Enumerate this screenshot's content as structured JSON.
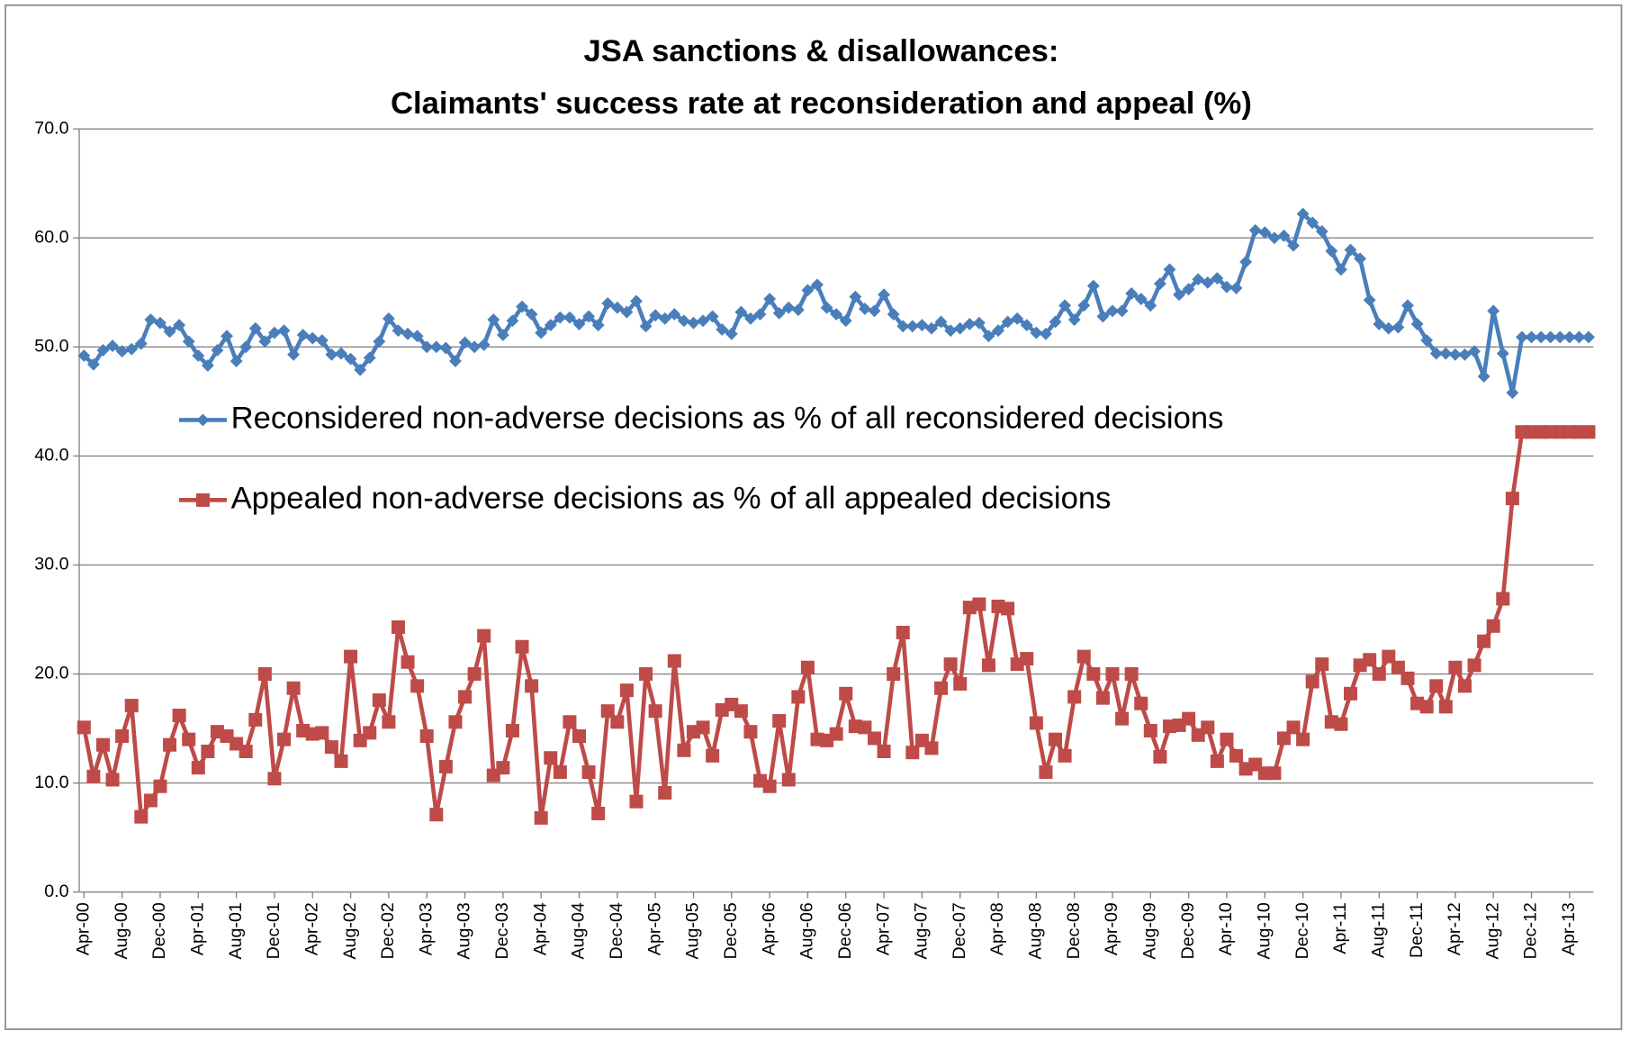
{
  "chart_data": {
    "type": "line",
    "title_lines": [
      "JSA sanctions & disallowances:",
      "Claimants' success rate at reconsideration and appeal (%)"
    ],
    "categories": [
      "Apr-00",
      null,
      null,
      null,
      "Aug-00",
      null,
      null,
      null,
      "Dec-00",
      null,
      null,
      null,
      "Apr-01",
      null,
      null,
      null,
      "Aug-01",
      null,
      null,
      null,
      "Dec-01",
      null,
      null,
      null,
      "Apr-02",
      null,
      null,
      null,
      "Aug-02",
      null,
      null,
      null,
      "Dec-02",
      null,
      null,
      null,
      "Apr-03",
      null,
      null,
      null,
      "Aug-03",
      null,
      null,
      null,
      "Dec-03",
      null,
      null,
      null,
      "Apr-04",
      null,
      null,
      null,
      "Aug-04",
      null,
      null,
      null,
      "Dec-04",
      null,
      null,
      null,
      "Apr-05",
      null,
      null,
      null,
      "Aug-05",
      null,
      null,
      null,
      "Dec-05",
      null,
      null,
      null,
      "Apr-06",
      null,
      null,
      null,
      "Aug-06",
      null,
      null,
      null,
      "Dec-06",
      null,
      null,
      null,
      "Apr-07",
      null,
      null,
      null,
      "Aug-07",
      null,
      null,
      null,
      "Dec-07",
      null,
      null,
      null,
      "Apr-08",
      null,
      null,
      null,
      "Aug-08",
      null,
      null,
      null,
      "Dec-08",
      null,
      null,
      null,
      "Apr-09",
      null,
      null,
      null,
      "Aug-09",
      null,
      null,
      null,
      "Dec-09",
      null,
      null,
      null,
      "Apr-10",
      null,
      null,
      null,
      "Aug-10",
      null,
      null,
      null,
      "Dec-10",
      null,
      null,
      null,
      "Apr-11",
      null,
      null,
      null,
      "Aug-11",
      null,
      null,
      null,
      "Dec-11",
      null,
      null,
      null,
      "Apr-12",
      null,
      null,
      null,
      "Aug-12",
      null,
      null,
      null,
      "Dec-12",
      null,
      null,
      null,
      "Apr-13",
      null,
      null
    ],
    "series": [
      {
        "name": "Reconsidered non-adverse decisions as % of all reconsidered decisions",
        "color": "#4a7ebb",
        "marker": "diamond",
        "values": [
          49.2,
          48.4,
          49.7,
          50.1,
          49.6,
          49.8,
          50.3,
          52.5,
          52.2,
          51.4,
          52.0,
          50.5,
          49.2,
          48.3,
          49.7,
          51.0,
          48.7,
          50.0,
          51.7,
          50.5,
          51.3,
          51.5,
          49.3,
          51.1,
          50.8,
          50.6,
          49.3,
          49.4,
          48.9,
          47.9,
          49.0,
          50.5,
          52.6,
          51.5,
          51.2,
          51.0,
          50.0,
          50.0,
          49.9,
          48.7,
          50.4,
          50.0,
          50.2,
          52.5,
          51.1,
          52.4,
          53.7,
          53.0,
          51.3,
          52.0,
          52.7,
          52.7,
          52.1,
          52.8,
          52.0,
          54.0,
          53.6,
          53.2,
          54.2,
          51.9,
          52.9,
          52.6,
          53.0,
          52.4,
          52.2,
          52.4,
          52.8,
          51.6,
          51.2,
          53.2,
          52.6,
          53.0,
          54.4,
          53.1,
          53.6,
          53.4,
          55.2,
          55.7,
          53.6,
          53.0,
          52.4,
          54.6,
          53.5,
          53.3,
          54.8,
          53.0,
          51.9,
          51.9,
          52.0,
          51.7,
          52.3,
          51.5,
          51.7,
          52.1,
          52.2,
          51.0,
          51.5,
          52.3,
          52.6,
          52.0,
          51.3,
          51.2,
          52.3,
          53.8,
          52.5,
          53.8,
          55.6,
          52.8,
          53.3,
          53.3,
          54.9,
          54.4,
          53.8,
          55.8,
          57.1,
          54.8,
          55.3,
          56.2,
          55.9,
          56.3,
          55.5,
          55.4,
          57.8,
          60.7,
          60.5,
          60.0,
          60.2,
          59.3,
          62.2,
          61.4,
          60.6,
          58.8,
          57.1,
          58.9,
          58.1,
          54.3,
          52.1,
          51.7,
          51.8,
          53.8,
          52.1,
          50.6,
          49.4,
          49.4,
          49.3,
          49.3,
          49.6,
          47.3,
          53.3,
          49.4,
          45.8,
          50.9,
          50.9,
          50.9,
          50.9,
          50.9,
          50.9,
          50.9,
          50.9
        ]
      },
      {
        "name": "Appealed non-adverse decisions as % of all appealed decisions",
        "color": "#be4b48",
        "marker": "square",
        "values": [
          15.1,
          10.6,
          13.5,
          10.3,
          14.3,
          17.1,
          6.9,
          8.4,
          9.7,
          13.5,
          16.2,
          14.0,
          11.4,
          12.9,
          14.7,
          14.3,
          13.6,
          12.9,
          15.8,
          20.0,
          10.4,
          14.0,
          18.7,
          14.8,
          14.5,
          14.6,
          13.3,
          12.0,
          21.6,
          13.9,
          14.6,
          17.6,
          15.6,
          24.3,
          21.1,
          18.9,
          14.3,
          7.1,
          11.5,
          15.6,
          17.9,
          20.0,
          23.5,
          10.7,
          11.4,
          14.8,
          22.5,
          18.9,
          6.8,
          12.3,
          11.0,
          15.6,
          14.3,
          11.0,
          7.2,
          16.6,
          15.6,
          18.5,
          8.3,
          20.0,
          16.6,
          9.1,
          21.2,
          13.0,
          14.7,
          15.1,
          12.5,
          16.7,
          17.2,
          16.6,
          14.7,
          10.2,
          9.7,
          15.7,
          10.3,
          17.9,
          20.6,
          14.0,
          13.9,
          14.5,
          18.2,
          15.2,
          15.1,
          14.1,
          12.9,
          20.0,
          23.8,
          12.8,
          13.9,
          13.2,
          18.7,
          20.9,
          19.1,
          26.1,
          26.4,
          20.8,
          26.2,
          26.0,
          20.9,
          21.4,
          15.5,
          11.0,
          14.0,
          12.5,
          17.9,
          21.6,
          20.0,
          17.8,
          20.0,
          15.9,
          20.0,
          17.3,
          14.8,
          12.4,
          15.2,
          15.3,
          15.9,
          14.4,
          15.1,
          12.0,
          14.0,
          12.5,
          11.3,
          11.7,
          10.9,
          10.9,
          14.1,
          15.1,
          14.0,
          19.3,
          20.9,
          15.6,
          15.4,
          18.2,
          20.8,
          21.3,
          20.0,
          21.6,
          20.6,
          19.6,
          17.3,
          17.0,
          18.9,
          17.0,
          20.6,
          18.9,
          20.8,
          23.0,
          24.4,
          26.9,
          36.1,
          42.2,
          42.2,
          42.2,
          42.2,
          42.2,
          42.2,
          42.2,
          42.2
        ]
      }
    ],
    "ylim": [
      0,
      70
    ],
    "yticks": [
      {
        "value": 0,
        "label": "0.0"
      },
      {
        "value": 10,
        "label": "10.0"
      },
      {
        "value": 20,
        "label": "20.0"
      },
      {
        "value": 30,
        "label": "30.0"
      },
      {
        "value": 40,
        "label": "40.0"
      },
      {
        "value": 50,
        "label": "50.0"
      },
      {
        "value": 60,
        "label": "60.0"
      },
      {
        "value": 70,
        "label": "70.0"
      }
    ],
    "grid": true,
    "legend": "center-left"
  }
}
